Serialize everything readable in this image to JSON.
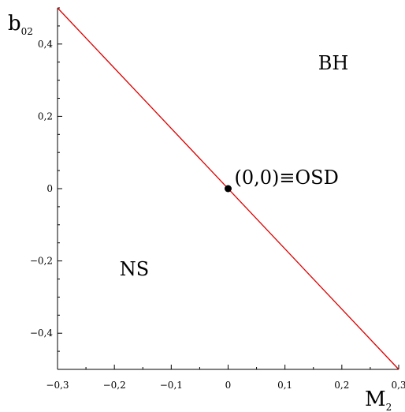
{
  "chart_data": {
    "type": "line",
    "xlabel": {
      "main": "M",
      "sub": "2"
    },
    "ylabel": {
      "main": "b",
      "sub": "02"
    },
    "xlim": [
      -0.3,
      0.3
    ],
    "ylim": [
      -0.5,
      0.5
    ],
    "xticks": [
      -0.3,
      -0.2,
      -0.1,
      0,
      0.1,
      0.2,
      0.3
    ],
    "xtick_labels": [
      "−0,3",
      "−0,2",
      "−0,1",
      "0",
      "0,1",
      "0,2",
      "0,3"
    ],
    "yticks": [
      -0.4,
      -0.2,
      0,
      0.2,
      0.4
    ],
    "ytick_labels": [
      "−0,4",
      "−0,2",
      "0",
      "0,2",
      "0,4"
    ],
    "series": [
      {
        "x": [
          -0.3,
          0.3
        ],
        "y": [
          0.5,
          -0.5
        ],
        "color": "#dd0000"
      }
    ],
    "points": [
      {
        "x": 0,
        "y": 0,
        "label": "(0,0)≡OSD",
        "color": "#000000"
      }
    ],
    "regions": [
      {
        "label": "BH",
        "x": 0.185,
        "y": 0.33
      },
      {
        "label": "NS",
        "x": -0.165,
        "y": -0.24
      }
    ],
    "grid": false,
    "legend": "none"
  }
}
